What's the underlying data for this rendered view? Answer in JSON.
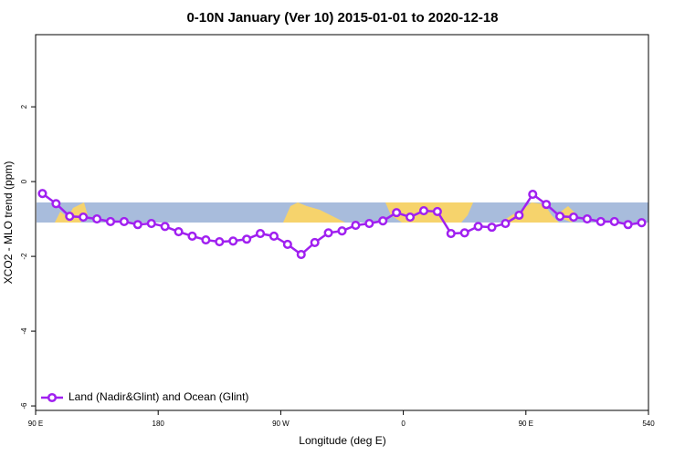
{
  "chart_data": {
    "type": "line",
    "title": "0-10N January (Ver 10)   2015-01-01 to 2020-12-18",
    "x_label": "Longitude (deg E)",
    "y_label": "XCO2 - MLO trend (ppm)",
    "xlim": [
      90,
      540
    ],
    "ylim": [
      -6.12,
      3.93
    ],
    "xticks": [
      {
        "value": 90,
        "label": "90 E"
      },
      180,
      {
        "value": 270,
        "label": "90 W"
      },
      {
        "value": 360,
        "label": "0"
      },
      {
        "value": 450,
        "label": "90 E"
      },
      540
    ],
    "yticks": [
      2,
      0,
      -2,
      -4,
      -6
    ],
    "x": [
      95,
      105,
      115,
      125,
      135,
      145,
      155,
      165,
      175,
      185,
      195,
      205,
      215,
      225,
      235,
      245,
      255,
      265,
      275,
      285,
      295,
      305,
      315,
      325,
      335,
      345,
      355,
      365,
      375,
      385,
      395,
      405,
      415,
      425,
      435,
      445,
      455,
      465,
      475,
      485,
      495,
      505,
      515,
      525,
      535
    ],
    "series": [
      {
        "name": "Land (Nadir&Glint) and Ocean (Glint)",
        "color": "#a020f0",
        "values": [
          -0.32,
          -0.59,
          -0.93,
          -0.95,
          -1.0,
          -1.07,
          -1.07,
          -1.15,
          -1.12,
          -1.2,
          -1.34,
          -1.46,
          -1.56,
          -1.61,
          -1.59,
          -1.54,
          -1.39,
          -1.46,
          -1.68,
          -1.95,
          -1.63,
          -1.37,
          -1.32,
          -1.17,
          -1.12,
          -1.05,
          -0.83,
          -0.95,
          -0.78,
          -0.8,
          -1.39,
          -1.37,
          -1.2,
          -1.22,
          -1.12,
          -0.9,
          -0.34,
          -0.61,
          -0.93,
          -0.95,
          -1.0,
          -1.07,
          -1.07,
          -1.15,
          -1.1
        ]
      }
    ],
    "legend": "bottom-left"
  }
}
